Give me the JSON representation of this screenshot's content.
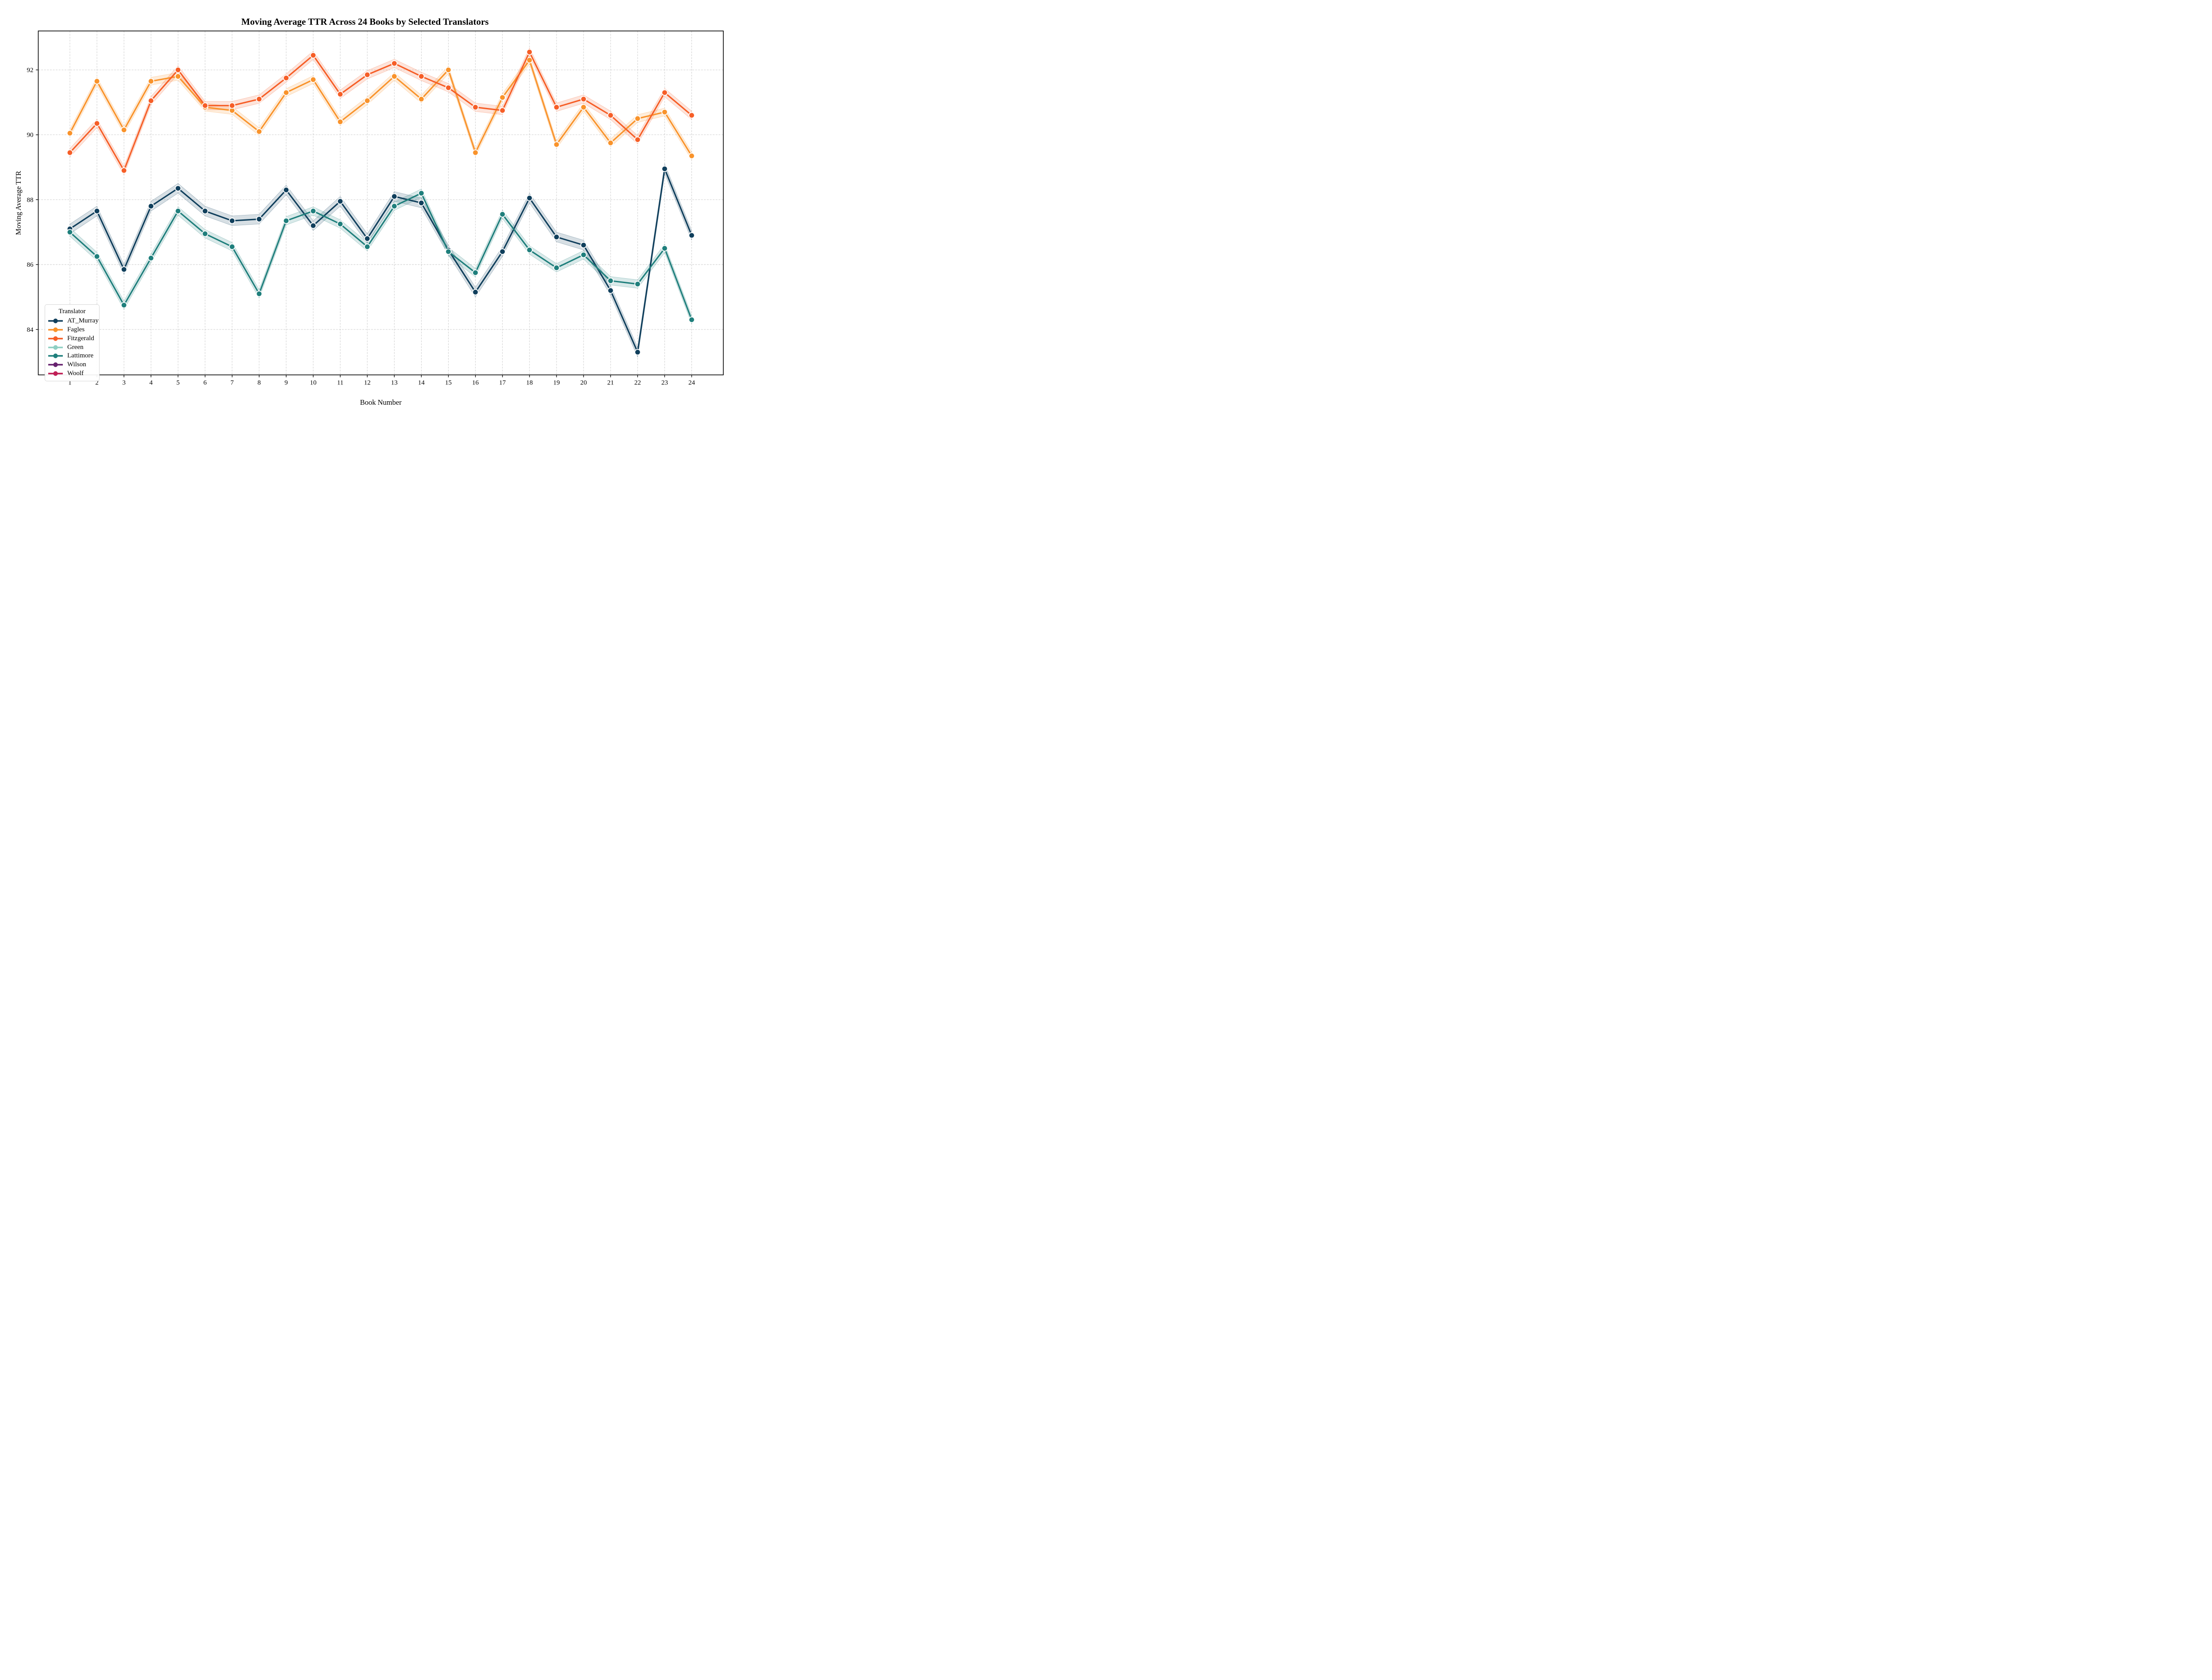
{
  "page": {
    "background": "#ffffff"
  },
  "chart_data": {
    "type": "line",
    "title": "Moving Average TTR Across 24 Books by Selected Translators",
    "axes": {
      "xlabel": "Book Number",
      "ylabel": "Moving Average TTR",
      "xlim": [
        -0.17,
        25.17
      ],
      "ylim": [
        82.6,
        93.2
      ],
      "xticks": [
        1,
        2,
        3,
        4,
        5,
        6,
        7,
        8,
        9,
        10,
        11,
        12,
        13,
        14,
        15,
        16,
        17,
        18,
        19,
        20,
        21,
        22,
        23,
        24
      ],
      "yticks": [
        84,
        86,
        88,
        90,
        92
      ],
      "grid": true,
      "grid_style": "dashed"
    },
    "legend": {
      "title": "Translator",
      "position": "lower left"
    },
    "x": [
      1,
      2,
      3,
      4,
      5,
      6,
      7,
      8,
      9,
      10,
      11,
      12,
      13,
      14,
      15,
      16,
      17,
      18,
      19,
      20,
      21,
      22,
      23,
      24
    ],
    "series": [
      {
        "name": "AT_Murray",
        "color": "#103f5c",
        "band": 0.15,
        "values": [
          87.1,
          87.65,
          85.85,
          87.8,
          88.35,
          87.65,
          87.35,
          87.4,
          88.3,
          87.2,
          87.95,
          86.8,
          88.1,
          87.9,
          86.45,
          85.15,
          86.4,
          88.05,
          86.85,
          86.6,
          85.2,
          83.3,
          88.95,
          86.9
        ]
      },
      {
        "name": "Fagles",
        "color": "#f9932b",
        "band": 0.12,
        "values": [
          90.05,
          91.65,
          90.15,
          91.65,
          91.8,
          90.85,
          90.75,
          90.1,
          91.3,
          91.7,
          90.4,
          91.05,
          91.8,
          91.1,
          92.0,
          89.45,
          91.15,
          92.3,
          89.7,
          90.85,
          89.75,
          90.5,
          90.7,
          89.35
        ]
      },
      {
        "name": "Fitzgerald",
        "color": "#f65e27",
        "band": 0.13,
        "values": [
          89.45,
          90.35,
          88.9,
          91.05,
          92.0,
          90.9,
          90.9,
          91.1,
          91.75,
          92.45,
          91.25,
          91.85,
          92.2,
          91.8,
          91.45,
          90.85,
          90.75,
          92.55,
          90.85,
          91.1,
          90.6,
          89.85,
          91.3,
          90.6
        ]
      },
      {
        "name": "Green",
        "color": "#8fcfc3",
        "band": 0.12,
        "values": []
      },
      {
        "name": "Lattimore",
        "color": "#1f7f7c",
        "band": 0.13,
        "values": [
          87.0,
          86.25,
          84.75,
          86.2,
          87.65,
          86.95,
          86.55,
          85.1,
          87.35,
          87.65,
          87.25,
          86.55,
          87.8,
          88.2,
          86.4,
          85.75,
          87.55,
          86.45,
          85.9,
          86.3,
          85.5,
          85.4,
          86.5,
          84.3
        ]
      },
      {
        "name": "Wilson",
        "color": "#66216e",
        "band": 0.12,
        "values": []
      },
      {
        "name": "Woolf",
        "color": "#c01f56",
        "band": 0.12,
        "values": []
      }
    ]
  }
}
